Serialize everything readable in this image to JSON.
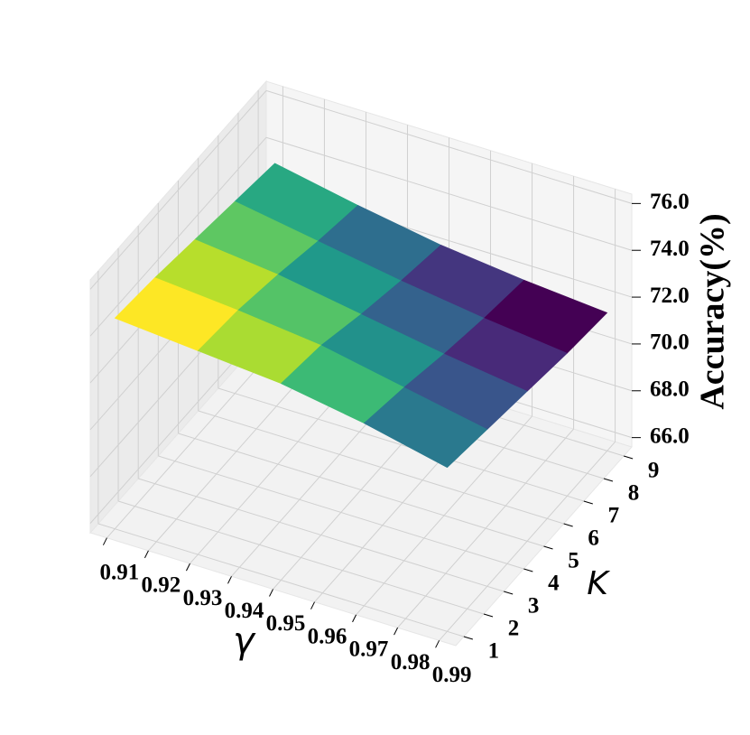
{
  "chart_data": {
    "type": "surface3d",
    "x_label": "γ",
    "y_label": "K",
    "z_label": "Accuracy(%)",
    "x": [
      0.91,
      0.93,
      0.95,
      0.97,
      0.99
    ],
    "y": [
      1,
      3,
      5,
      7,
      9
    ],
    "z": [
      [
        74.6,
        74.3,
        74.0,
        73.4,
        72.6
      ],
      [
        74.4,
        74.1,
        73.7,
        73.0,
        72.3
      ],
      [
        74.1,
        73.7,
        73.1,
        72.5,
        72.0
      ],
      [
        73.8,
        73.2,
        72.6,
        72.1,
        71.7
      ],
      [
        73.5,
        72.8,
        72.2,
        71.8,
        71.5
      ]
    ],
    "xlim": [
      0.906,
      0.994
    ],
    "ylim": [
      0.6,
      9.4
    ],
    "zlim": [
      65.6,
      76.4
    ],
    "xticks": [
      0.91,
      0.92,
      0.93,
      0.94,
      0.95,
      0.96,
      0.97,
      0.98,
      0.99
    ],
    "yticks": [
      1,
      2,
      3,
      4,
      5,
      6,
      7,
      8,
      9
    ],
    "zticks": [
      {
        "value": 66,
        "label": "66.0"
      },
      {
        "value": 68,
        "label": "68.0"
      },
      {
        "value": 70,
        "label": "70.0"
      },
      {
        "value": 72,
        "label": "72.0"
      },
      {
        "value": 74,
        "label": "74.0"
      },
      {
        "value": 76,
        "label": "76.0"
      }
    ],
    "colormap": "viridis",
    "grid": true
  }
}
